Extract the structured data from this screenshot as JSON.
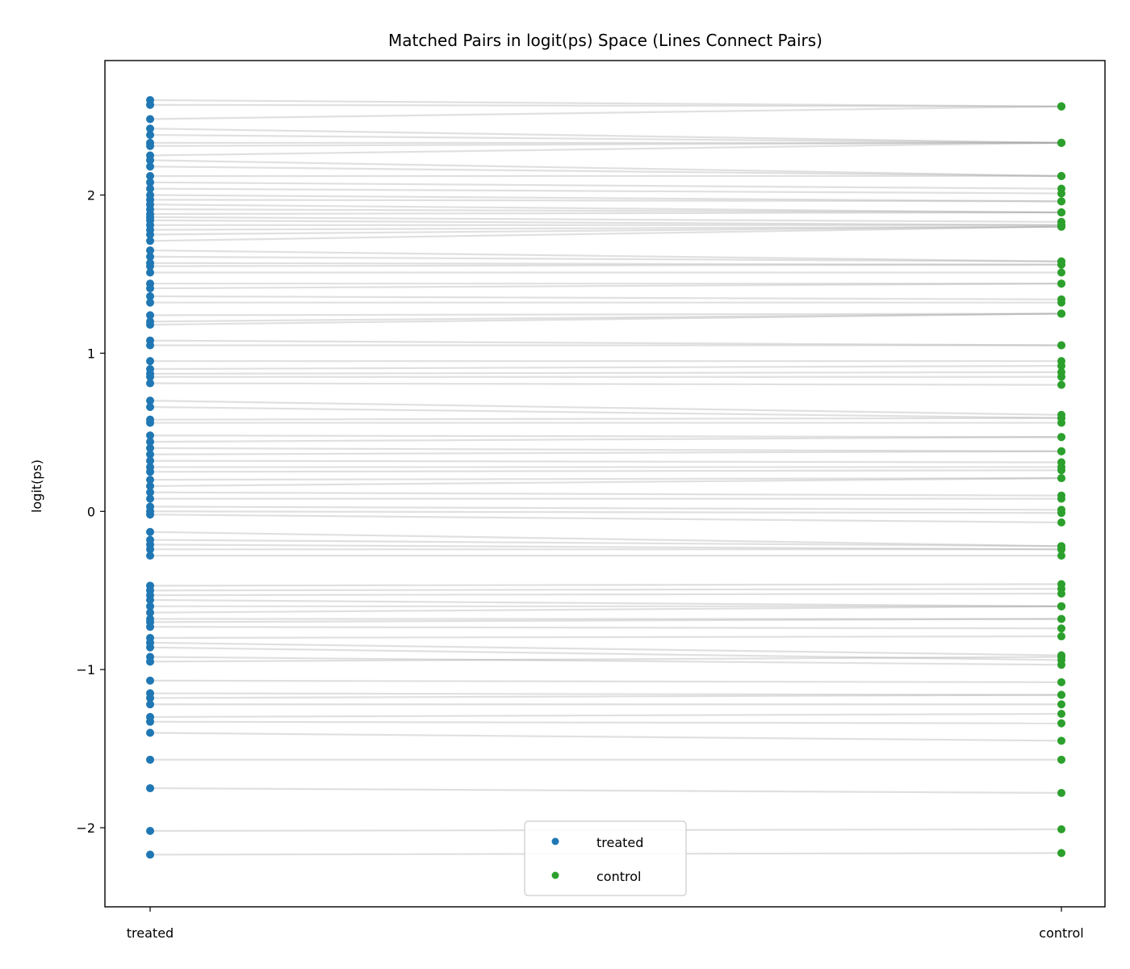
{
  "chart_data": {
    "type": "scatter",
    "title": "Matched Pairs in logit(ps) Space (Lines Connect Pairs)",
    "xlabel": "",
    "ylabel": "logit(ps)",
    "ylim": [
      -2.5,
      2.85
    ],
    "x_categories": [
      "treated",
      "control"
    ],
    "y_ticks": [
      -2,
      -1,
      0,
      1,
      2
    ],
    "y_tick_labels": [
      "−2",
      "−1",
      "0",
      "1",
      "2"
    ],
    "legend": {
      "placement": "lower-center",
      "entries": [
        {
          "label": "treated",
          "color": "#1f77b4"
        },
        {
          "label": "control",
          "color": "#2ca02c"
        }
      ]
    },
    "line_color": "#999999",
    "pairs": [
      [
        2.6,
        2.56
      ],
      [
        2.57,
        2.56
      ],
      [
        2.48,
        2.56
      ],
      [
        2.42,
        2.33
      ],
      [
        2.38,
        2.33
      ],
      [
        2.33,
        2.33
      ],
      [
        2.31,
        2.33
      ],
      [
        2.25,
        2.33
      ],
      [
        2.22,
        2.12
      ],
      [
        2.18,
        2.12
      ],
      [
        2.12,
        2.12
      ],
      [
        2.08,
        2.04
      ],
      [
        2.04,
        2.01
      ],
      [
        2.0,
        1.96
      ],
      [
        1.97,
        1.96
      ],
      [
        1.94,
        1.89
      ],
      [
        1.91,
        1.89
      ],
      [
        1.88,
        1.89
      ],
      [
        1.86,
        1.83
      ],
      [
        1.84,
        1.81
      ],
      [
        1.81,
        1.81
      ],
      [
        1.78,
        1.8
      ],
      [
        1.75,
        1.8
      ],
      [
        1.71,
        1.8
      ],
      [
        1.65,
        1.58
      ],
      [
        1.61,
        1.58
      ],
      [
        1.57,
        1.56
      ],
      [
        1.55,
        1.56
      ],
      [
        1.51,
        1.51
      ],
      [
        1.44,
        1.44
      ],
      [
        1.41,
        1.44
      ],
      [
        1.36,
        1.34
      ],
      [
        1.32,
        1.32
      ],
      [
        1.24,
        1.25
      ],
      [
        1.2,
        1.25
      ],
      [
        1.18,
        1.25
      ],
      [
        1.08,
        1.05
      ],
      [
        1.05,
        1.05
      ],
      [
        0.95,
        0.95
      ],
      [
        0.9,
        0.92
      ],
      [
        0.87,
        0.88
      ],
      [
        0.85,
        0.85
      ],
      [
        0.81,
        0.8
      ],
      [
        0.7,
        0.61
      ],
      [
        0.66,
        0.59
      ],
      [
        0.58,
        0.59
      ],
      [
        0.56,
        0.56
      ],
      [
        0.48,
        0.47
      ],
      [
        0.44,
        0.47
      ],
      [
        0.4,
        0.38
      ],
      [
        0.36,
        0.38
      ],
      [
        0.32,
        0.31
      ],
      [
        0.28,
        0.28
      ],
      [
        0.25,
        0.26
      ],
      [
        0.2,
        0.21
      ],
      [
        0.16,
        0.21
      ],
      [
        0.12,
        0.1
      ],
      [
        0.08,
        0.08
      ],
      [
        0.03,
        0.01
      ],
      [
        0.0,
        -0.01
      ],
      [
        -0.02,
        -0.07
      ],
      [
        -0.13,
        -0.22
      ],
      [
        -0.18,
        -0.22
      ],
      [
        -0.21,
        -0.24
      ],
      [
        -0.24,
        -0.24
      ],
      [
        -0.28,
        -0.28
      ],
      [
        -0.47,
        -0.46
      ],
      [
        -0.5,
        -0.49
      ],
      [
        -0.53,
        -0.52
      ],
      [
        -0.56,
        -0.6
      ],
      [
        -0.6,
        -0.6
      ],
      [
        -0.64,
        -0.6
      ],
      [
        -0.68,
        -0.68
      ],
      [
        -0.7,
        -0.68
      ],
      [
        -0.73,
        -0.74
      ],
      [
        -0.8,
        -0.79
      ],
      [
        -0.83,
        -0.91
      ],
      [
        -0.86,
        -0.94
      ],
      [
        -0.92,
        -0.97
      ],
      [
        -0.95,
        -0.92
      ],
      [
        -1.07,
        -1.08
      ],
      [
        -1.15,
        -1.16
      ],
      [
        -1.18,
        -1.16
      ],
      [
        -1.22,
        -1.22
      ],
      [
        -1.3,
        -1.28
      ],
      [
        -1.33,
        -1.34
      ],
      [
        -1.4,
        -1.45
      ],
      [
        -1.57,
        -1.57
      ],
      [
        -1.75,
        -1.78
      ],
      [
        -2.02,
        -2.01
      ],
      [
        -2.17,
        -2.16
      ]
    ]
  }
}
